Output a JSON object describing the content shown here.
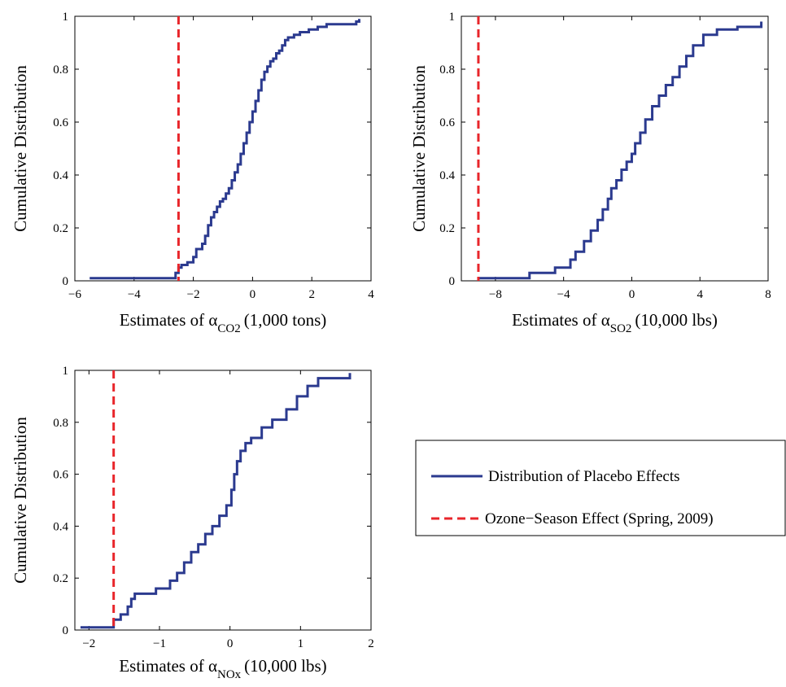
{
  "chart_data": [
    {
      "type": "line",
      "id": "co2",
      "xlabel_prefix": "Estimates of α",
      "xlabel_sub": "CO2",
      "xlabel_suffix": "(1,000 tons)",
      "ylabel": "Cumulative Distribution",
      "xlim": [
        -6,
        4
      ],
      "ylim": [
        0,
        1
      ],
      "xticks": [
        -6,
        -4,
        -2,
        0,
        2,
        4
      ],
      "xtick_labels": [
        "−6",
        "−4",
        "−2",
        "0",
        "2",
        "4"
      ],
      "yticks": [
        0,
        0.2,
        0.4,
        0.6,
        0.8,
        1
      ],
      "ytick_labels": [
        "0",
        "0.2",
        "0.4",
        "0.6",
        "0.8",
        "1"
      ],
      "series": [
        {
          "name": "Distribution of Placebo Effects",
          "style": "step",
          "color": "#2b3a8f",
          "x": [
            -5.5,
            -2.6,
            -2.5,
            -2.4,
            -2.2,
            -2.0,
            -1.9,
            -1.7,
            -1.6,
            -1.5,
            -1.4,
            -1.3,
            -1.2,
            -1.1,
            -1.0,
            -0.9,
            -0.8,
            -0.7,
            -0.6,
            -0.5,
            -0.4,
            -0.3,
            -0.2,
            -0.1,
            0.0,
            0.1,
            0.2,
            0.3,
            0.4,
            0.5,
            0.6,
            0.7,
            0.8,
            0.9,
            1.0,
            1.1,
            1.2,
            1.4,
            1.6,
            1.9,
            2.2,
            2.5,
            3.5,
            3.6
          ],
          "y": [
            0.01,
            0.03,
            0.05,
            0.06,
            0.07,
            0.09,
            0.12,
            0.14,
            0.17,
            0.21,
            0.24,
            0.26,
            0.28,
            0.3,
            0.31,
            0.33,
            0.35,
            0.38,
            0.41,
            0.44,
            0.48,
            0.52,
            0.56,
            0.6,
            0.64,
            0.68,
            0.72,
            0.76,
            0.79,
            0.81,
            0.83,
            0.84,
            0.86,
            0.87,
            0.89,
            0.91,
            0.92,
            0.93,
            0.94,
            0.95,
            0.96,
            0.97,
            0.98,
            0.99
          ]
        },
        {
          "name": "Ozone−Season Effect (Spring, 2009)",
          "style": "vline",
          "color": "#e8262b",
          "x": -2.5
        }
      ]
    },
    {
      "type": "line",
      "id": "so2",
      "xlabel_prefix": "Estimates of α",
      "xlabel_sub": "SO2",
      "xlabel_suffix": "(10,000 lbs)",
      "ylabel": "Cumulative Distribution",
      "xlim": [
        -10,
        8
      ],
      "ylim": [
        0,
        1
      ],
      "xticks": [
        -8,
        -4,
        0,
        4,
        8
      ],
      "xtick_labels": [
        "−8",
        "−4",
        "0",
        "4",
        "8"
      ],
      "yticks": [
        0,
        0.2,
        0.4,
        0.6,
        0.8,
        1
      ],
      "ytick_labels": [
        "0",
        "0.2",
        "0.4",
        "0.6",
        "0.8",
        "1"
      ],
      "series": [
        {
          "name": "Distribution of Placebo Effects",
          "style": "step",
          "color": "#2b3a8f",
          "x": [
            -9.0,
            -6.0,
            -4.5,
            -3.6,
            -3.3,
            -2.8,
            -2.4,
            -2.0,
            -1.7,
            -1.4,
            -1.2,
            -0.9,
            -0.6,
            -0.3,
            0.0,
            0.2,
            0.5,
            0.8,
            1.2,
            1.6,
            2.0,
            2.4,
            2.8,
            3.2,
            3.6,
            4.2,
            5.0,
            6.2,
            7.6
          ],
          "y": [
            0.01,
            0.03,
            0.05,
            0.08,
            0.11,
            0.15,
            0.19,
            0.23,
            0.27,
            0.31,
            0.35,
            0.38,
            0.42,
            0.45,
            0.48,
            0.52,
            0.56,
            0.61,
            0.66,
            0.7,
            0.74,
            0.77,
            0.81,
            0.85,
            0.89,
            0.93,
            0.95,
            0.96,
            0.98
          ]
        },
        {
          "name": "Ozone−Season Effect (Spring, 2009)",
          "style": "vline",
          "color": "#e8262b",
          "x": -9.0
        }
      ]
    },
    {
      "type": "line",
      "id": "nox",
      "xlabel_prefix": "Estimates of α",
      "xlabel_sub": "NOx",
      "xlabel_suffix": "(10,000 lbs)",
      "ylabel": "Cumulative Distribution",
      "xlim": [
        -2.2,
        2
      ],
      "ylim": [
        0,
        1
      ],
      "xticks": [
        -2,
        -1,
        0,
        1,
        2
      ],
      "xtick_labels": [
        "−2",
        "−1",
        "0",
        "1",
        "2"
      ],
      "yticks": [
        0,
        0.2,
        0.4,
        0.6,
        0.8,
        1
      ],
      "ytick_labels": [
        "0",
        "0.2",
        "0.4",
        "0.6",
        "0.8",
        "1"
      ],
      "series": [
        {
          "name": "Distribution of Placebo Effects",
          "style": "step",
          "color": "#2b3a8f",
          "x": [
            -2.12,
            -1.65,
            -1.55,
            -1.45,
            -1.4,
            -1.35,
            -1.05,
            -0.85,
            -0.75,
            -0.65,
            -0.55,
            -0.45,
            -0.35,
            -0.25,
            -0.15,
            -0.05,
            0.02,
            0.06,
            0.1,
            0.15,
            0.22,
            0.3,
            0.45,
            0.6,
            0.8,
            0.95,
            1.1,
            1.25,
            1.7
          ],
          "y": [
            0.01,
            0.04,
            0.06,
            0.09,
            0.12,
            0.14,
            0.16,
            0.19,
            0.22,
            0.26,
            0.3,
            0.33,
            0.37,
            0.4,
            0.44,
            0.48,
            0.54,
            0.6,
            0.65,
            0.69,
            0.72,
            0.74,
            0.78,
            0.81,
            0.85,
            0.9,
            0.94,
            0.97,
            0.99
          ]
        },
        {
          "name": "Ozone−Season Effect (Spring, 2009)",
          "style": "vline",
          "color": "#e8262b",
          "x": -1.65
        }
      ]
    }
  ],
  "legend": {
    "placement": "bottom-right",
    "entries": [
      {
        "label": "Distribution of Placebo Effects",
        "color": "#2b3a8f",
        "style": "solid"
      },
      {
        "label": "Ozone−Season Effect (Spring, 2009)",
        "color": "#e8262b",
        "style": "dashed"
      }
    ]
  }
}
